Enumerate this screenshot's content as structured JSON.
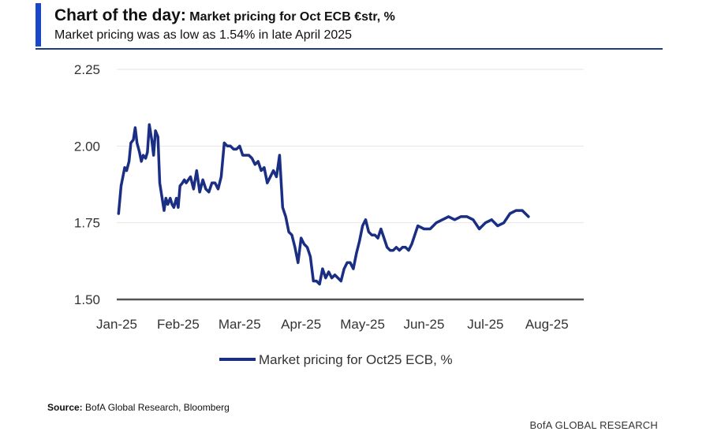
{
  "header": {
    "title_prefix": "Chart of the day:",
    "title_text": "Market pricing for Oct ECB €str, %",
    "subtitle": "Market pricing was as low as 1.54% in late April 2025"
  },
  "footer": {
    "source_label": "Source:",
    "source_text": "BofA Global Research, Bloomberg",
    "brand": "BofA GLOBAL RESEARCH"
  },
  "colors": {
    "line": "#1a2f84",
    "accent": "#1848c7",
    "axis": "#555555",
    "grid": "#e6e6e6"
  },
  "chart_data": {
    "type": "line",
    "title": "Market pricing for Oct ECB €str, %",
    "xlabel": "",
    "ylabel": "",
    "ylim": [
      1.5,
      2.25
    ],
    "yticks": [
      {
        "value": 1.5,
        "label": "1.50"
      },
      {
        "value": 1.75,
        "label": "1.75"
      },
      {
        "value": 2.0,
        "label": "2.00"
      },
      {
        "value": 2.25,
        "label": "2.25"
      }
    ],
    "xlim": [
      0,
      7.6
    ],
    "xticks": [
      {
        "value": 0,
        "label": "Jan-25"
      },
      {
        "value": 1,
        "label": "Feb-25"
      },
      {
        "value": 2,
        "label": "Mar-25"
      },
      {
        "value": 3,
        "label": "Apr-25"
      },
      {
        "value": 4,
        "label": "May-25"
      },
      {
        "value": 5,
        "label": "Jun-25"
      },
      {
        "value": 6,
        "label": "Jul-25"
      },
      {
        "value": 7,
        "label": "Aug-25"
      }
    ],
    "grid": true,
    "legend": "bottom-center",
    "series": [
      {
        "name": "Market pricing for Oct25 ECB, %",
        "x": [
          0.03,
          0.07,
          0.1,
          0.13,
          0.16,
          0.2,
          0.23,
          0.27,
          0.3,
          0.33,
          0.37,
          0.4,
          0.43,
          0.47,
          0.5,
          0.53,
          0.57,
          0.6,
          0.63,
          0.67,
          0.7,
          0.73,
          0.77,
          0.8,
          0.83,
          0.87,
          0.9,
          0.93,
          0.97,
          1.0,
          1.03,
          1.07,
          1.1,
          1.13,
          1.2,
          1.25,
          1.3,
          1.35,
          1.4,
          1.45,
          1.5,
          1.55,
          1.6,
          1.65,
          1.7,
          1.75,
          1.8,
          1.85,
          1.9,
          1.95,
          2.0,
          2.05,
          2.1,
          2.15,
          2.2,
          2.25,
          2.3,
          2.35,
          2.4,
          2.45,
          2.5,
          2.55,
          2.6,
          2.65,
          2.7,
          2.75,
          2.8,
          2.85,
          2.9,
          2.95,
          3.0,
          3.05,
          3.1,
          3.15,
          3.2,
          3.25,
          3.3,
          3.35,
          3.4,
          3.45,
          3.5,
          3.55,
          3.6,
          3.65,
          3.7,
          3.75,
          3.8,
          3.85,
          3.9,
          3.95,
          4.0,
          4.05,
          4.1,
          4.15,
          4.2,
          4.25,
          4.3,
          4.35,
          4.4,
          4.45,
          4.5,
          4.55,
          4.6,
          4.65,
          4.7,
          4.75,
          4.8,
          4.9,
          5.0,
          5.1,
          5.2,
          5.3,
          5.4,
          5.5,
          5.6,
          5.7,
          5.8,
          5.9,
          6.0,
          6.1,
          6.2,
          6.3,
          6.4,
          6.5,
          6.6,
          6.7
        ],
        "y": [
          1.78,
          1.87,
          1.9,
          1.93,
          1.92,
          1.95,
          2.01,
          2.02,
          2.06,
          2.01,
          1.98,
          1.95,
          1.97,
          1.96,
          1.98,
          2.07,
          2.02,
          1.97,
          2.05,
          2.03,
          1.88,
          1.84,
          1.79,
          1.83,
          1.81,
          1.83,
          1.81,
          1.8,
          1.83,
          1.8,
          1.87,
          1.88,
          1.89,
          1.88,
          1.9,
          1.86,
          1.92,
          1.85,
          1.89,
          1.86,
          1.85,
          1.88,
          1.88,
          1.86,
          1.9,
          2.01,
          2.0,
          2.0,
          1.99,
          1.99,
          2.0,
          1.97,
          1.97,
          1.97,
          1.96,
          1.94,
          1.95,
          1.92,
          1.93,
          1.88,
          1.9,
          1.92,
          1.9,
          1.97,
          1.8,
          1.77,
          1.72,
          1.71,
          1.67,
          1.62,
          1.7,
          1.68,
          1.67,
          1.64,
          1.56,
          1.56,
          1.55,
          1.6,
          1.57,
          1.59,
          1.57,
          1.58,
          1.57,
          1.56,
          1.6,
          1.62,
          1.62,
          1.6,
          1.65,
          1.69,
          1.74,
          1.76,
          1.72,
          1.71,
          1.71,
          1.7,
          1.73,
          1.7,
          1.67,
          1.66,
          1.66,
          1.67,
          1.66,
          1.67,
          1.67,
          1.66,
          1.68,
          1.74,
          1.73,
          1.73,
          1.75,
          1.76,
          1.77,
          1.76,
          1.77,
          1.77,
          1.76,
          1.73,
          1.75,
          1.76,
          1.74,
          1.75,
          1.78,
          1.79,
          1.79,
          1.77
        ]
      }
    ]
  }
}
